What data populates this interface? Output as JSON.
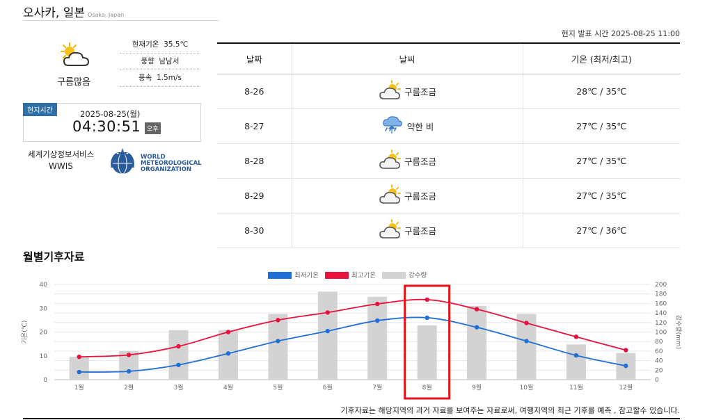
{
  "location": {
    "name": "오사카, 일본",
    "name_en": "Osaka, Japan"
  },
  "current": {
    "icon": "partly-cloudy-sun-icon",
    "condition": "구름많음",
    "temp_label": "현재기온",
    "temp": "35.5℃",
    "wind_dir_label": "풍향",
    "wind_dir": "남남서",
    "wind_speed_label": "풍속",
    "wind_speed": "1.5m/s"
  },
  "local_time": {
    "tag": "현지시간",
    "date": "2025-08-25(월)",
    "clock": "04:30:51",
    "ampm": "오후"
  },
  "service": {
    "name": "세계기상정보서비스",
    "short": "WWIS",
    "org_line1": "WORLD",
    "org_line2": "METEOROLOGICAL",
    "org_line3": "ORGANIZATION"
  },
  "forecast": {
    "issued": "현지 발표 시간 2025-08-25 11:00",
    "headers": [
      "날짜",
      "날씨",
      "기온 (최저/최고)"
    ],
    "rows": [
      {
        "date": "8-26",
        "icon": "partly-cloudy-icon",
        "weather": "구름조금",
        "temp": "28℃ / 35℃"
      },
      {
        "date": "8-27",
        "icon": "light-rain-icon",
        "weather": "약한 비",
        "temp": "27℃ / 35℃"
      },
      {
        "date": "8-28",
        "icon": "partly-cloudy-icon",
        "weather": "구름조금",
        "temp": "27℃ / 35℃"
      },
      {
        "date": "8-29",
        "icon": "partly-cloudy-icon",
        "weather": "구름조금",
        "temp": "27℃ / 35℃"
      },
      {
        "date": "8-30",
        "icon": "partly-cloudy-icon",
        "weather": "구름조금",
        "temp": "27℃ / 36℃"
      }
    ]
  },
  "climate": {
    "title": "월별기후자료",
    "footnote": "기후자료는 해당지역의 과거 자료를 보여주는 자료로써, 여행지역의 최근 기후를 예측 , 참고할수 있습니다."
  },
  "chart_data": {
    "type": "bar",
    "categories": [
      "1월",
      "2월",
      "3월",
      "4월",
      "5월",
      "6월",
      "7월",
      "8월",
      "9월",
      "10월",
      "11월",
      "12월"
    ],
    "series": [
      {
        "name": "최저기온",
        "type": "line",
        "axis": "left",
        "color": "#1f6fd6",
        "values": [
          3.2,
          3.5,
          6.2,
          11.0,
          16.2,
          20.4,
          24.8,
          26.0,
          22.0,
          16.2,
          10.2,
          5.8
        ]
      },
      {
        "name": "최고기온",
        "type": "line",
        "axis": "left",
        "color": "#e8123c",
        "values": [
          9.6,
          10.4,
          14.0,
          20.0,
          25.0,
          28.2,
          31.8,
          33.6,
          29.6,
          23.8,
          18.0,
          12.4
        ]
      },
      {
        "name": "강수량",
        "type": "bar",
        "axis": "right",
        "color": "#d3d3d3",
        "values": [
          48,
          60,
          104,
          104,
          138,
          185,
          174,
          114,
          155,
          138,
          74,
          56
        ]
      }
    ],
    "ylabel_left": "기온(℃)",
    "ylabel_right": "강수량(mm)",
    "ylim_left": [
      0,
      40
    ],
    "ylim_right": [
      0,
      200
    ],
    "yticks_left": [
      "0",
      "10",
      "20",
      "30",
      "40"
    ],
    "yticks_right": [
      "0",
      "20",
      "40",
      "60",
      "80",
      "100",
      "120",
      "140",
      "160",
      "180",
      "200"
    ],
    "grid": true,
    "legend": "top-center",
    "highlight": "8월",
    "highlight_color": "#e8121b"
  }
}
